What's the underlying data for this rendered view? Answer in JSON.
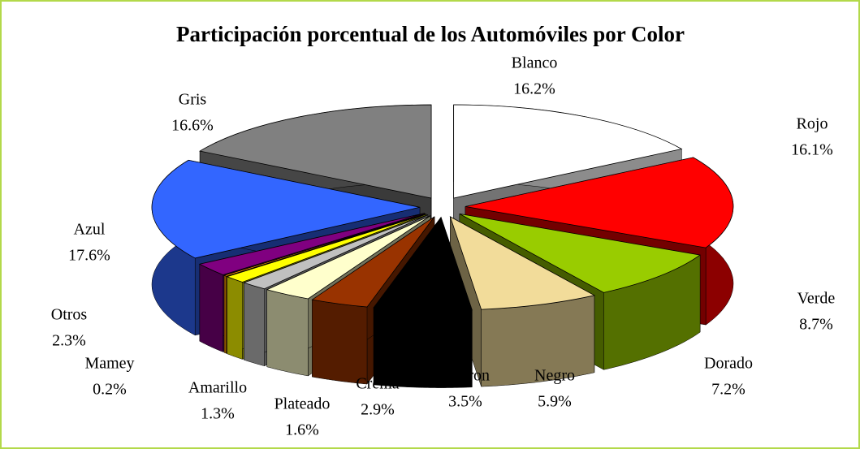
{
  "chart_data": {
    "type": "pie",
    "title": "Participación porcentual de los Automóviles por Color",
    "categories": [
      "Blanco",
      "Rojo",
      "Verde",
      "Dorado",
      "Negro",
      "Marron",
      "Crema",
      "Plateado",
      "Amarillo",
      "Mamey",
      "Otros",
      "Azul",
      "Gris"
    ],
    "values": [
      16.2,
      16.1,
      8.7,
      7.2,
      5.9,
      3.5,
      2.9,
      1.6,
      1.3,
      0.2,
      2.3,
      17.6,
      16.6
    ],
    "value_labels": [
      "16.2%",
      "16.1%",
      "8.7%",
      "7.2%",
      "5.9%",
      "3.5%",
      "2.9%",
      "1.6%",
      "1.3%",
      "0.2%",
      "2.3%",
      "17.6%",
      "16.6%"
    ],
    "colors": [
      "#ffffff",
      "#ff0000",
      "#99cc00",
      "#f2dc9a",
      "#000000",
      "#993300",
      "#ffffcc",
      "#c0c0c0",
      "#ffff00",
      "#ff9900",
      "#800080",
      "#3366ff",
      "#808080"
    ]
  }
}
